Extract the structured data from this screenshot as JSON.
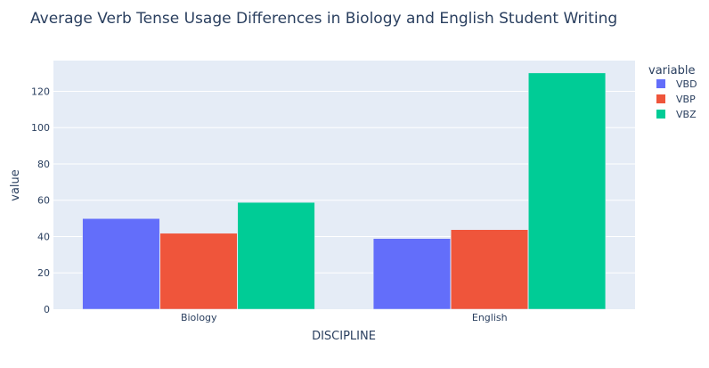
{
  "chart_data": {
    "type": "bar",
    "title": "Average Verb Tense Usage Differences in Biology and English Student Writing",
    "xlabel": "DISCIPLINE",
    "ylabel": "value",
    "categories": [
      "Biology",
      "English"
    ],
    "series": [
      {
        "name": "VBD",
        "color": "#636efa",
        "values": [
          49.9,
          38.9
        ]
      },
      {
        "name": "VBP",
        "color": "#ef553b",
        "values": [
          41.8,
          43.8
        ]
      },
      {
        "name": "VBZ",
        "color": "#00cc96",
        "values": [
          58.8,
          130.1
        ]
      }
    ],
    "ylim": [
      0,
      136.9
    ],
    "yticks": [
      0,
      20,
      40,
      60,
      80,
      100,
      120
    ],
    "legend": {
      "title": "variable",
      "placement": "right"
    },
    "grid": true,
    "barmode": "group",
    "plot_bg": "#e5ecf6"
  }
}
